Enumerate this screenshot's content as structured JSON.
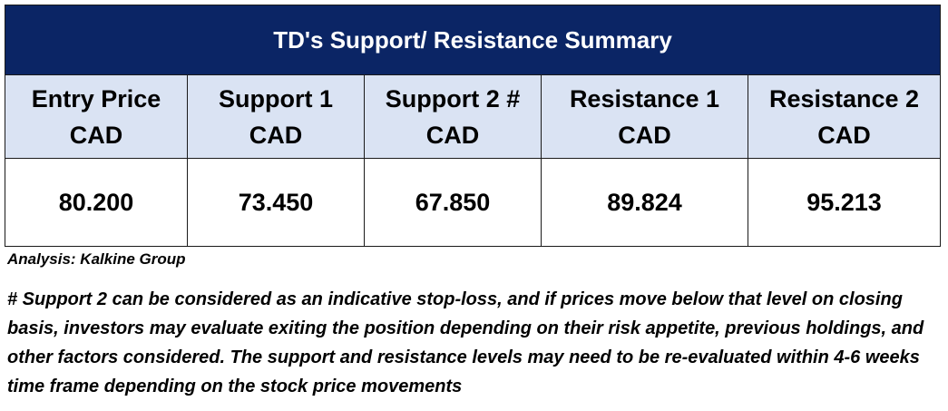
{
  "table": {
    "title": "TD's Support/  Resistance Summary",
    "columns": [
      {
        "label_line1": "Entry Price",
        "label_line2": "CAD",
        "value": "80.200"
      },
      {
        "label_line1": "Support 1",
        "label_line2": "CAD",
        "value": "73.450"
      },
      {
        "label_line1": "Support 2 #",
        "label_line2": "CAD",
        "value": "67.850"
      },
      {
        "label_line1": "Resistance 1",
        "label_line2": "CAD",
        "value": "89.824"
      },
      {
        "label_line1": "Resistance 2",
        "label_line2": "CAD",
        "value": "95.213"
      }
    ],
    "colors": {
      "title_background": "#0b2565",
      "header_background": "#dae3f3"
    }
  },
  "analysis_note": "Analysis: Kalkine Group",
  "footnote": "# Support 2 can be considered as an indicative stop-loss, and if prices move below that level on closing basis, investors may evaluate exiting the position depending on their risk appetite, previous holdings, and other factors considered. The support and resistance levels may need to be re-evaluated within 4-6 weeks time frame depending on the stock price movements"
}
